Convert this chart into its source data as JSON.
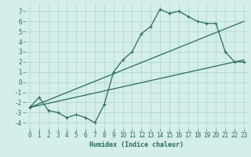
{
  "xlabel": "Humidex (Indice chaleur)",
  "bg_color": "#d4eeea",
  "grid_color": "#aed4cc",
  "line_color": "#2a6b5e",
  "xlim": [
    -0.5,
    23.5
  ],
  "ylim": [
    -4.6,
    7.8
  ],
  "xticks": [
    0,
    1,
    2,
    3,
    4,
    5,
    6,
    7,
    8,
    9,
    10,
    11,
    12,
    13,
    14,
    15,
    16,
    17,
    18,
    19,
    20,
    21,
    22,
    23
  ],
  "yticks": [
    -4,
    -3,
    -2,
    -1,
    0,
    1,
    2,
    3,
    4,
    5,
    6,
    7
  ],
  "line1_x": [
    0,
    1,
    2,
    3,
    4,
    5,
    6,
    7,
    8,
    9,
    10,
    11,
    12,
    13,
    14,
    15,
    16,
    17,
    18,
    19,
    20,
    21,
    22,
    23
  ],
  "line1_y": [
    -2.5,
    -1.5,
    -2.8,
    -3.0,
    -3.5,
    -3.2,
    -3.5,
    -4.0,
    -2.2,
    1.0,
    2.2,
    3.0,
    4.8,
    5.5,
    7.2,
    6.8,
    7.0,
    6.5,
    6.0,
    5.8,
    5.8,
    3.0,
    2.0,
    2.0
  ],
  "line2_x": [
    0,
    23
  ],
  "line2_y": [
    -2.5,
    2.2
  ],
  "line3_x": [
    0,
    23
  ],
  "line3_y": [
    -2.5,
    6.0
  ],
  "xlabel_fontsize": 6,
  "tick_fontsize": 5.5,
  "lw": 0.9,
  "ms": 2.5
}
